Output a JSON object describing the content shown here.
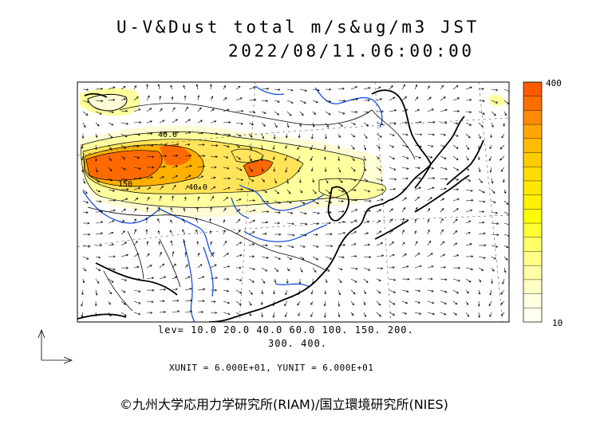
{
  "title": {
    "line1": "U-V&Dust total m/s&ug/m3 JST",
    "line2": "2022/08/11.06:00:00"
  },
  "colorbar": {
    "max_label": "400",
    "min_label": "10",
    "colors": [
      "#ff5a00",
      "#ff6e00",
      "#ff8a00",
      "#ffa600",
      "#ffbc00",
      "#ffcc00",
      "#ffdc00",
      "#ffe800",
      "#fff200",
      "#ffff00",
      "#ffff33",
      "#ffff66",
      "#ffff88",
      "#ffffa8",
      "#ffffc6",
      "#ffffe0",
      "#fffff0"
    ]
  },
  "contour_labels": [
    "40.0",
    "150",
    "40.0"
  ],
  "legend": {
    "levels_line1": "lev= 10.0 20.0 40.0 60.0 100. 150. 200.",
    "levels_line2": "300. 400.",
    "units": "XUNIT = 6.000E+01, YUNIT = 6.000E+01"
  },
  "credit": "©九州大学応用力学研究所(RIAM)/国立環境研究所(NIES)"
}
